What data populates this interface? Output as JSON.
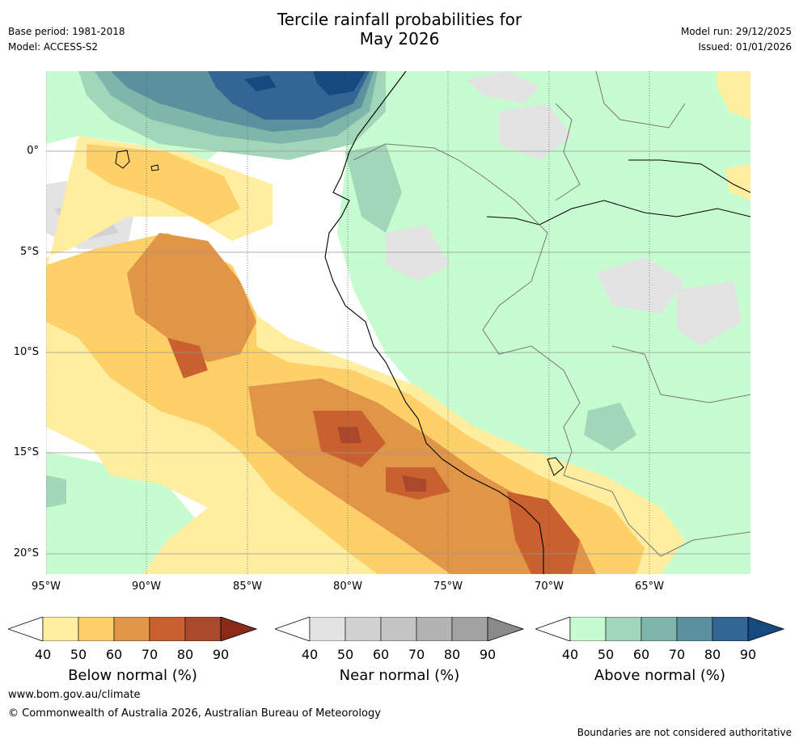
{
  "title_line1": "Tercile rainfall probabilities for",
  "title_line2": "May 2026",
  "base_period": "Base period: 1981-2018",
  "model": "Model: ACCESS-S2",
  "model_run": "Model run: 29/12/2025",
  "issued": "Issued: 01/01/2026",
  "lat_labels": [
    "0°",
    "5°S",
    "10°S",
    "15°S",
    "20°S"
  ],
  "lon_labels": [
    "95°W",
    "90°W",
    "85°W",
    "80°W",
    "75°W",
    "70°W",
    "65°W"
  ],
  "colorbars": [
    {
      "title": "Below normal (%)",
      "ticks": [
        "40",
        "50",
        "60",
        "70",
        "80",
        "90"
      ],
      "colors": [
        "#ffeda0",
        "#fed06a",
        "#e19547",
        "#c8602f",
        "#a9482a",
        "#8c2a1a"
      ]
    },
    {
      "title": "Near normal (%)",
      "ticks": [
        "40",
        "50",
        "60",
        "70",
        "80",
        "90"
      ],
      "colors": [
        "#e3e3e3",
        "#d2d2d2",
        "#c4c4c4",
        "#b3b3b3",
        "#a2a2a2",
        "#8a8a8a"
      ]
    },
    {
      "title": "Above normal (%)",
      "ticks": [
        "40",
        "50",
        "60",
        "70",
        "80",
        "90"
      ],
      "colors": [
        "#c7fcd0",
        "#a2d6b8",
        "#7fb6ac",
        "#5b919e",
        "#336595",
        "#154a7f"
      ]
    }
  ],
  "footer_url": "www.bom.gov.au/climate",
  "footer_copyright": "© Commonwealth of Australia 2026, Australian Bureau of Meteorology",
  "footer_disclaimer": "Boundaries are not considered authoritative"
}
